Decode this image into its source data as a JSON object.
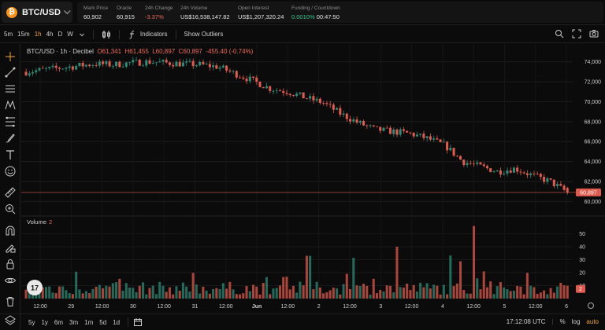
{
  "header": {
    "pair": "BTC/USD",
    "coin_glyph": "₿",
    "stats": [
      {
        "label": "Mark Price",
        "value": "60,902",
        "tone": "normal"
      },
      {
        "label": "Oracle",
        "value": "60,915",
        "tone": "normal"
      },
      {
        "label": "24h Change",
        "value": "-3.37%",
        "tone": "negative"
      },
      {
        "label": "24h Volume",
        "value": "US$16,538,147.82",
        "tone": "normal"
      },
      {
        "label": "Open Interest",
        "value": "US$1,207,320.24",
        "tone": "normal"
      },
      {
        "label": "Funding / Countdown",
        "value": "00:47:50",
        "funding": "0.0010%",
        "tone": "normal"
      }
    ]
  },
  "toolbar": {
    "timeframes": [
      "5m",
      "15m",
      "1h",
      "4h",
      "D",
      "W"
    ],
    "active_timeframe": "1h",
    "indicators_label": "Indicators",
    "outliers_label": "Show Outliers"
  },
  "legend": {
    "title": "BTC/USD · 1h · Decibel",
    "open": "O61,341",
    "high": "H61,455",
    "low": "L60,897",
    "close": "C60,897",
    "change": "-455.40 (-0.74%)"
  },
  "volume_label": {
    "title": "Volume",
    "value": "2"
  },
  "price_axis": {
    "ticks": [
      "74,000",
      "72,000",
      "70,000",
      "68,000",
      "66,000",
      "64,000",
      "62,000",
      "60,000"
    ],
    "last_price": "60,897"
  },
  "volume_axis": {
    "ticks": [
      "50",
      "40",
      "30",
      "20",
      "10"
    ],
    "last": "2"
  },
  "time_axis": {
    "ticks": [
      "12:00",
      "29",
      "12:00",
      "30",
      "12:00",
      "31",
      "12:00",
      "Jun",
      "12:00",
      "2",
      "12:00",
      "3",
      "12:00",
      "4",
      "12:00",
      "5",
      "12:00",
      "6"
    ]
  },
  "bottom": {
    "ranges": [
      "5y",
      "1y",
      "6m",
      "3m",
      "1m",
      "5d",
      "1d"
    ],
    "clock": "17:12:08 UTC",
    "percent_label": "%",
    "log_label": "log",
    "auto_label": "auto"
  },
  "colors": {
    "up": "#2e8b76",
    "down": "#e05a4e",
    "accent": "#f0a33a"
  },
  "chart_data": {
    "type": "candlestick",
    "ylim": [
      59000,
      75000
    ],
    "price_path": [
      73000,
      73200,
      73400,
      73600,
      73800,
      73700,
      73900,
      74000,
      73900,
      73800,
      73700,
      73500,
      72800,
      72100,
      71300,
      71000,
      70400,
      69900,
      68800,
      67900,
      67200,
      67000,
      66800,
      66300,
      65600,
      64000,
      63500,
      63000,
      63300,
      62600,
      62000,
      60897
    ],
    "volume_ylim": [
      0,
      60
    ]
  }
}
